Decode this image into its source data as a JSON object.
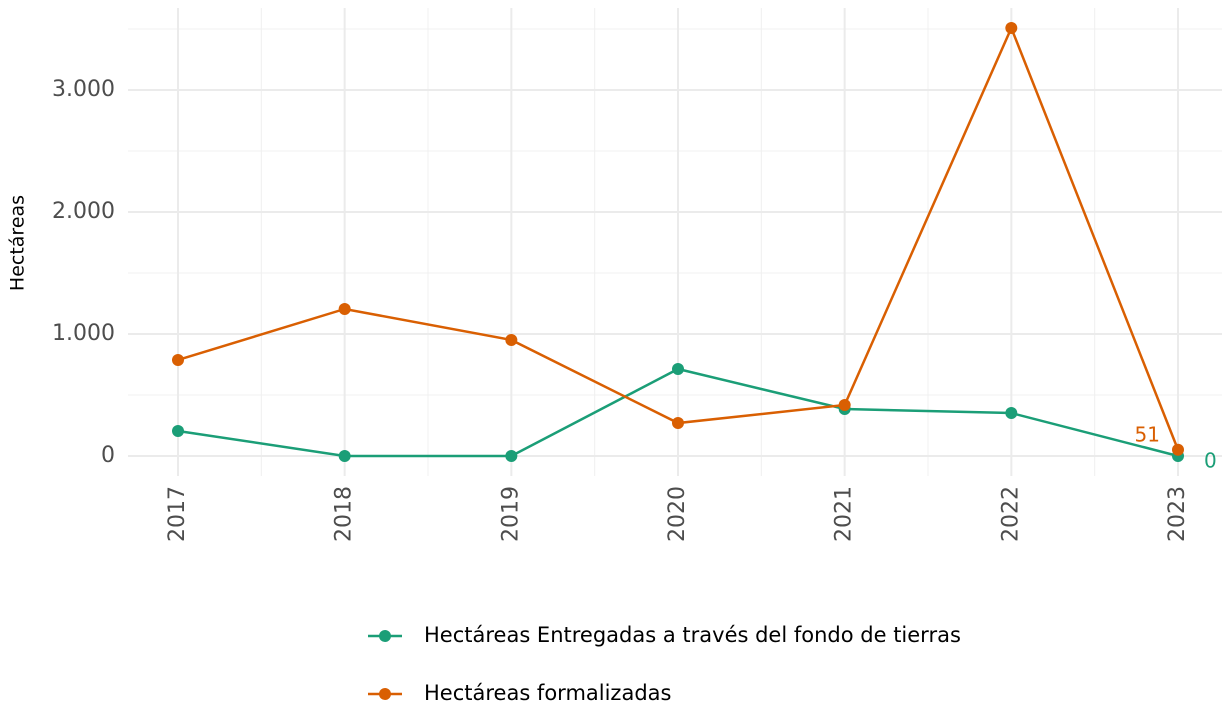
{
  "chart_data": {
    "type": "line",
    "y_axis_label": "Hectáreas",
    "categories": [
      "2017",
      "2018",
      "2019",
      "2020",
      "2021",
      "2022",
      "2023"
    ],
    "series": [
      {
        "name": "Hectáreas Entregadas a través del fondo de tierras",
        "color": "#1b9e77",
        "values": [
          205,
          0,
          0,
          713,
          385,
          352,
          0
        ]
      },
      {
        "name": "Hectáreas formalizadas",
        "color": "#d95f02",
        "values": [
          787,
          1205,
          951,
          270,
          418,
          3508,
          51
        ]
      }
    ],
    "ylim": [
      -164,
      3672
    ],
    "yticks": [
      {
        "value": 0,
        "label": "0"
      },
      {
        "value": 1000,
        "label": "1.000"
      },
      {
        "value": 2000,
        "label": "2.000"
      },
      {
        "value": 3000,
        "label": "3.000"
      }
    ],
    "y_minor_ticks": [
      500,
      1500,
      2500,
      3500
    ],
    "grid": true,
    "legend": "bottom"
  }
}
